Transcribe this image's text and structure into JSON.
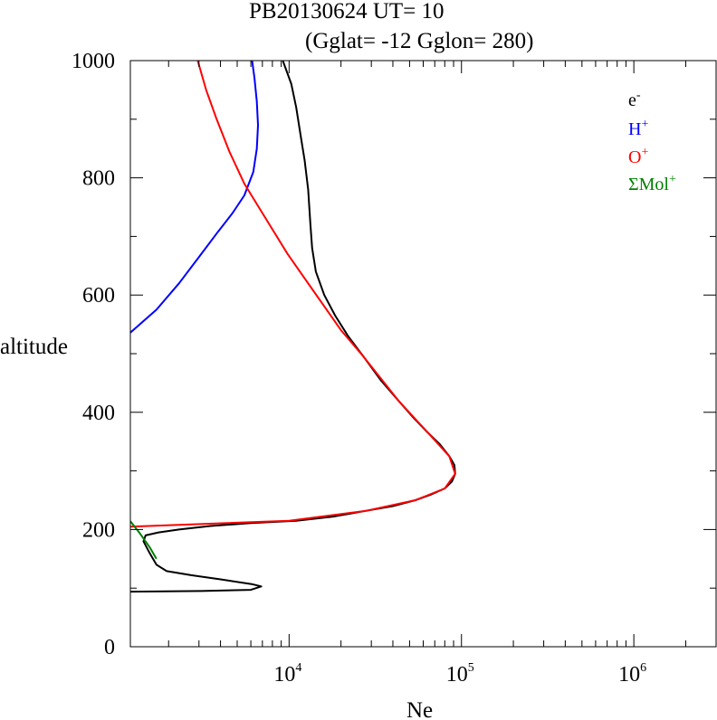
{
  "chart_data": {
    "type": "line",
    "title": "PB20130624   UT=  10",
    "subtitle": "(Gglat= -12   Gglon=  280)",
    "xlabel": "Ne",
    "ylabel": "altitude",
    "xscale": "log",
    "xlim": [
      1200,
      3000000
    ],
    "ylim": [
      0,
      1000
    ],
    "grid": false,
    "legend_position": "top-right",
    "y_ticks": [
      "0",
      "200",
      "400",
      "600",
      "800",
      "1000"
    ],
    "x_tick_labels": [
      {
        "value": 10000,
        "base": "10",
        "exp": "4"
      },
      {
        "value": 100000,
        "base": "10",
        "exp": "5"
      },
      {
        "value": 1000000,
        "base": "10",
        "exp": "6"
      }
    ],
    "series": [
      {
        "name": "e-",
        "label_base": "e",
        "label_sup": "-",
        "color": "#000000",
        "points": [
          [
            1200,
            94
          ],
          [
            3100,
            95
          ],
          [
            6000,
            97
          ],
          [
            6900,
            103
          ],
          [
            6050,
            107
          ],
          [
            4000,
            115
          ],
          [
            2700,
            122
          ],
          [
            1950,
            129
          ],
          [
            1700,
            140
          ],
          [
            1550,
            160
          ],
          [
            1430,
            180
          ],
          [
            1470,
            190
          ],
          [
            1750,
            195
          ],
          [
            2300,
            200
          ],
          [
            3500,
            206
          ],
          [
            6000,
            211
          ],
          [
            11000,
            215
          ],
          [
            18000,
            222
          ],
          [
            28000,
            232
          ],
          [
            40000,
            240
          ],
          [
            54000,
            250
          ],
          [
            67000,
            260
          ],
          [
            80000,
            270
          ],
          [
            88000,
            282
          ],
          [
            92000,
            295
          ],
          [
            91000,
            310
          ],
          [
            85000,
            325
          ],
          [
            75000,
            345
          ],
          [
            64000,
            365
          ],
          [
            53000,
            390
          ],
          [
            43000,
            420
          ],
          [
            34000,
            455
          ],
          [
            27000,
            495
          ],
          [
            22000,
            530
          ],
          [
            18500,
            565
          ],
          [
            16000,
            600
          ],
          [
            14300,
            640
          ],
          [
            13600,
            680
          ],
          [
            13300,
            720
          ],
          [
            12900,
            780
          ],
          [
            12300,
            830
          ],
          [
            11700,
            870
          ],
          [
            11000,
            920
          ],
          [
            10300,
            960
          ],
          [
            9200,
            1000
          ]
        ]
      },
      {
        "name": "H+",
        "label_base": "H",
        "label_sup": "+",
        "color": "#0000ff",
        "points": [
          [
            1200,
            536
          ],
          [
            1700,
            575
          ],
          [
            2300,
            620
          ],
          [
            3000,
            665
          ],
          [
            3800,
            705
          ],
          [
            4700,
            740
          ],
          [
            5500,
            770
          ],
          [
            6200,
            810
          ],
          [
            6500,
            850
          ],
          [
            6600,
            890
          ],
          [
            6500,
            930
          ],
          [
            6300,
            970
          ],
          [
            6100,
            1000
          ]
        ]
      },
      {
        "name": "O+",
        "label_base": "O",
        "label_sup": "+",
        "color": "#ff0000",
        "points": [
          [
            1200,
            205
          ],
          [
            10000,
            215
          ],
          [
            28000,
            232
          ],
          [
            54000,
            250
          ],
          [
            80000,
            270
          ],
          [
            92000,
            295
          ],
          [
            85000,
            325
          ],
          [
            64000,
            365
          ],
          [
            43000,
            420
          ],
          [
            27000,
            495
          ],
          [
            20000,
            540
          ],
          [
            14000,
            605
          ],
          [
            9800,
            670
          ],
          [
            7000,
            740
          ],
          [
            5500,
            790
          ],
          [
            4500,
            845
          ],
          [
            3800,
            900
          ],
          [
            3300,
            950
          ],
          [
            2950,
            1000
          ]
        ]
      },
      {
        "name": "ΣMol+",
        "label_base": "ΣMol",
        "label_sup": "+",
        "color": "#008000",
        "points": [
          [
            1200,
            214
          ],
          [
            1350,
            195
          ],
          [
            1550,
            170
          ],
          [
            1700,
            150
          ]
        ]
      }
    ]
  }
}
